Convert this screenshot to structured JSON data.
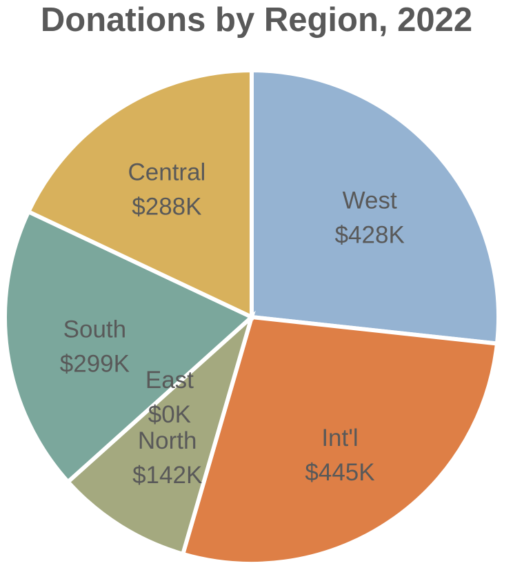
{
  "chart_data": {
    "type": "pie",
    "title": "Donations by Region, 2022",
    "slices": [
      {
        "label": "West",
        "value": 428,
        "value_label": "$428K",
        "color": "#95B3D2"
      },
      {
        "label": "Int'l",
        "value": 445,
        "value_label": "$445K",
        "color": "#DE7F46"
      },
      {
        "label": "North",
        "value": 142,
        "value_label": "$142K",
        "color": "#A4A97F"
      },
      {
        "label": "East",
        "value": 0,
        "value_label": "$0K",
        "color": "#A4A97F"
      },
      {
        "label": "South",
        "value": 299,
        "value_label": "$299K",
        "color": "#7BA79C"
      },
      {
        "label": "Central",
        "value": 288,
        "value_label": "$288K",
        "color": "#D8B15C"
      }
    ],
    "legend": "none"
  }
}
